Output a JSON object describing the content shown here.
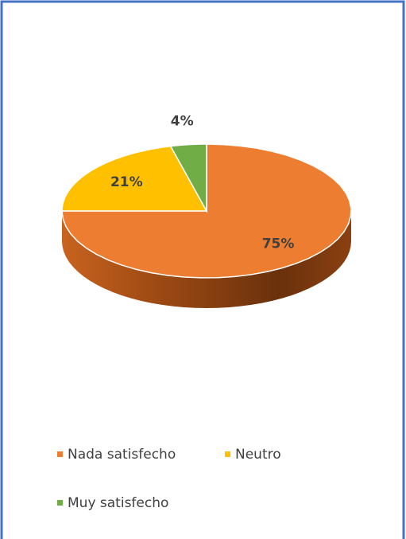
{
  "chart_data": {
    "type": "pie",
    "categories": [
      "Nada satisfecho",
      "Neutro",
      "Muy satisfecho"
    ],
    "values": [
      75,
      21,
      4
    ],
    "value_labels": [
      "75%",
      "21%",
      "4%"
    ],
    "colors": [
      "#ED7D31",
      "#FFC000",
      "#70AD47"
    ],
    "legend": "bottom",
    "three_d": true
  }
}
